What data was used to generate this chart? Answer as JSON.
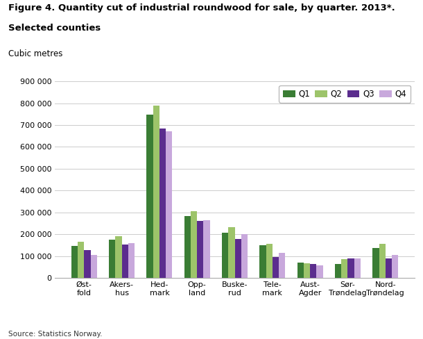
{
  "title_line1": "Figure 4. Quantity cut of industrial roundwood for sale, by quarter. 2013*.",
  "title_line2": "Selected counties",
  "ylabel_text": "Cubic metres",
  "source": "Source: Statistics Norway.",
  "categories": [
    "Øst-\nfold",
    "Akers-\nhus",
    "Hed-\nmark",
    "Opp-\nland",
    "Buske-\nrud",
    "Tele-\nmark",
    "Aust-\nAgder",
    "Sør-\nTrøndelag",
    "Nord-\nTrøndelag"
  ],
  "series": {
    "Q1": [
      148000,
      175000,
      748000,
      283000,
      207000,
      150000,
      70000,
      63000,
      138000
    ],
    "Q2": [
      165000,
      192000,
      790000,
      305000,
      233000,
      155000,
      68000,
      85000,
      157000
    ],
    "Q3": [
      127000,
      153000,
      683000,
      260000,
      178000,
      97000,
      65000,
      90000,
      90000
    ],
    "Q4": [
      105000,
      158000,
      673000,
      263000,
      200000,
      115000,
      57000,
      88000,
      104000
    ]
  },
  "colors": {
    "Q1": "#3a7d34",
    "Q2": "#9dc46a",
    "Q3": "#5b2d8e",
    "Q4": "#c8a8dc"
  },
  "ylim": [
    0,
    900000
  ],
  "yticks": [
    0,
    100000,
    200000,
    300000,
    400000,
    500000,
    600000,
    700000,
    800000,
    900000
  ],
  "legend_labels": [
    "Q1",
    "Q2",
    "Q3",
    "Q4"
  ],
  "background_color": "#ffffff",
  "grid_color": "#cccccc",
  "bar_width": 0.17
}
